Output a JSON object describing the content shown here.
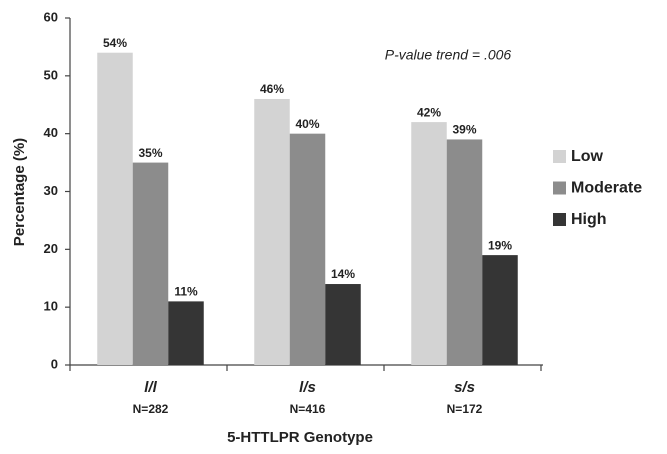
{
  "chart_data": {
    "type": "bar",
    "annotation": "P-value trend = .006",
    "x_label": "5-HTTLPR Genotype",
    "y_label": "Percentage (%)",
    "categories": [
      "l/l",
      "l/s",
      "s/s"
    ],
    "category_sublabels": [
      "N=282",
      "N=416",
      "N=172"
    ],
    "series": [
      {
        "name": "Low",
        "color": "#d3d3d3",
        "values": [
          54,
          46,
          42
        ],
        "value_labels": [
          "54%",
          "46%",
          "42%"
        ]
      },
      {
        "name": "Moderate",
        "color": "#8c8c8c",
        "values": [
          35,
          40,
          39
        ],
        "value_labels": [
          "35%",
          "40%",
          "39%"
        ]
      },
      {
        "name": "High",
        "color": "#353535",
        "values": [
          11,
          14,
          19
        ],
        "value_labels": [
          "11%",
          "14%",
          "19%"
        ]
      }
    ],
    "ylim": [
      0,
      60
    ],
    "yticks": [
      0,
      10,
      20,
      30,
      40,
      50,
      60
    ],
    "grid": false,
    "legend": "right"
  }
}
